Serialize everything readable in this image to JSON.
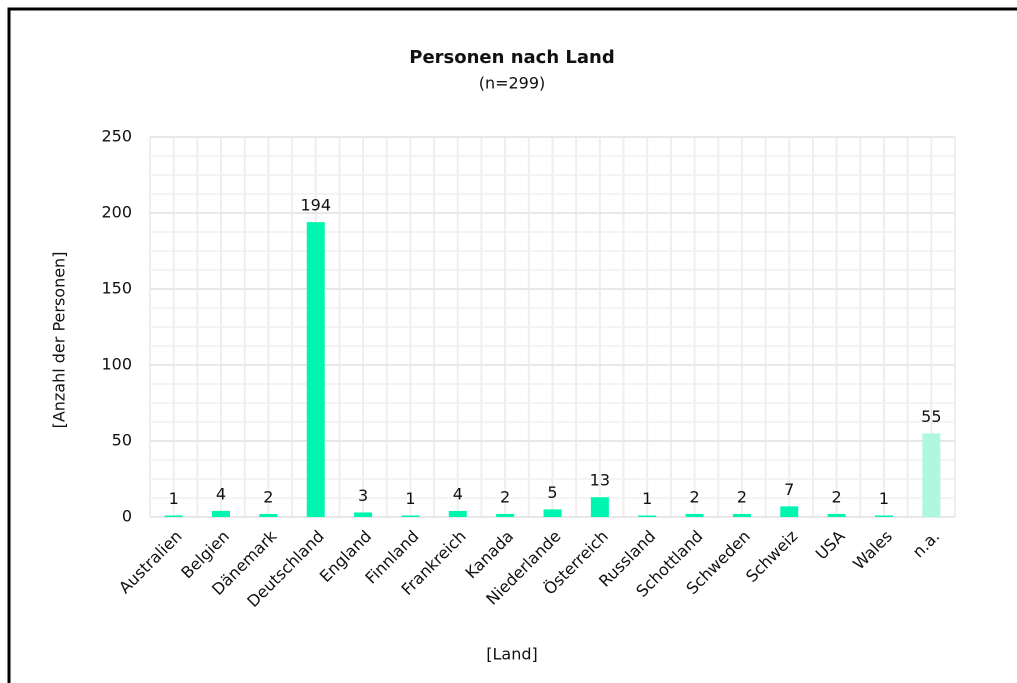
{
  "chart_data": {
    "type": "bar",
    "title": "Personen nach Land",
    "subtitle": "(n=299)",
    "x_label": "[Land]",
    "y_label": "[Anzahl der Personen]",
    "categories": [
      "Australien",
      "Belgien",
      "Dänemark",
      "Deutschland",
      "England",
      "Finnland",
      "Frankreich",
      "Kanada",
      "Niederlande",
      "Österreich",
      "Russland",
      "Schottland",
      "Schweden",
      "Schweiz",
      "USA",
      "Wales",
      "n.a."
    ],
    "values": [
      1,
      4,
      2,
      194,
      3,
      1,
      4,
      2,
      5,
      13,
      1,
      2,
      2,
      7,
      2,
      1,
      55
    ],
    "colors": [
      "#00f5b0",
      "#00f5b0",
      "#00f5b0",
      "#00f5b0",
      "#00f5b0",
      "#00f5b0",
      "#00f5b0",
      "#00f5b0",
      "#00f5b0",
      "#00f5b0",
      "#00f5b0",
      "#00f5b0",
      "#00f5b0",
      "#00f5b0",
      "#00f5b0",
      "#00f5b0",
      "#b0f7e0"
    ],
    "ylim": [
      0,
      250
    ],
    "yticks": [
      0,
      50,
      100,
      150,
      200,
      250
    ],
    "grid": true
  }
}
